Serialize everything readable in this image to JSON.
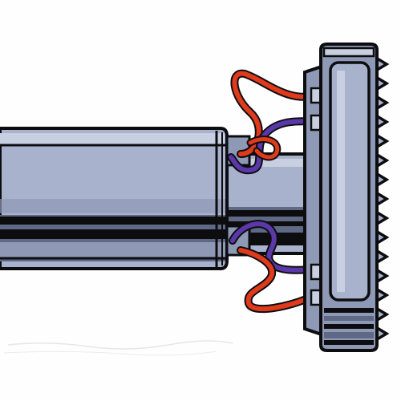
{
  "illustration": {
    "subject": "cylindrical-device-with-toothed-end-and-wires",
    "colors": {
      "background": "#fefefe",
      "outline": "#0d0d10",
      "body_light": "#a8b2cc",
      "body_mid": "#8e99b5",
      "body_shadow": "#5f6884",
      "highlight": "#c8cfe0",
      "wire_red": "#e03a1c",
      "wire_purple": "#5a38a8"
    }
  }
}
